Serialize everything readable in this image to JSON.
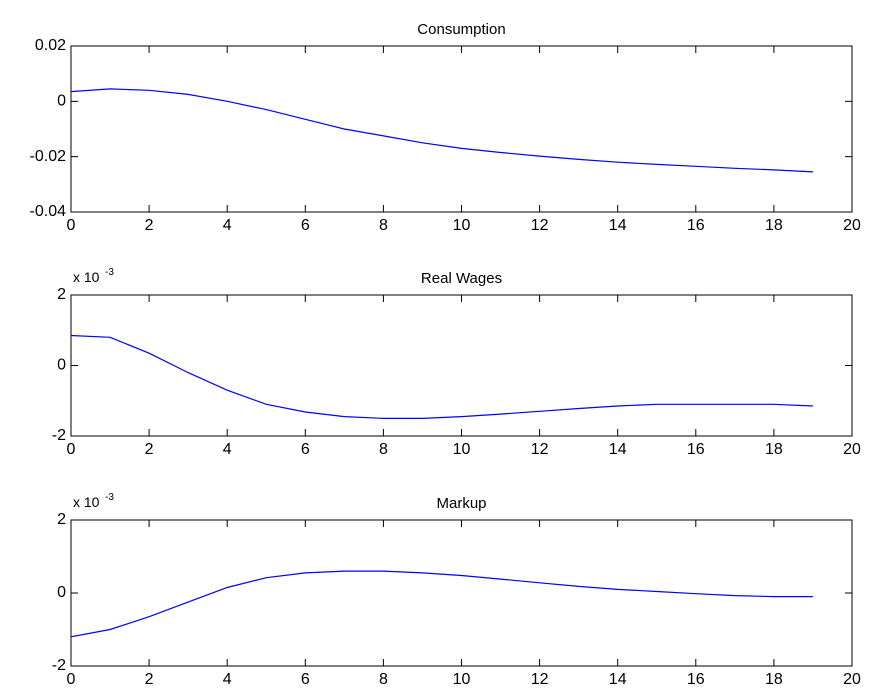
{
  "chart_data": [
    {
      "type": "line",
      "title": "Consumption",
      "xlabel": "",
      "ylabel": "",
      "xlim": [
        0,
        20
      ],
      "ylim": [
        -0.04,
        0.02
      ],
      "xticks": [
        "0",
        "2",
        "4",
        "6",
        "8",
        "10",
        "12",
        "14",
        "16",
        "18",
        "20"
      ],
      "yticks": [
        "-0.04",
        "-0.02",
        "0",
        "0.02"
      ],
      "y_multiplier": "",
      "grid": false,
      "x": [
        0,
        1,
        2,
        3,
        4,
        5,
        6,
        7,
        8,
        9,
        10,
        11,
        12,
        13,
        14,
        15,
        16,
        17,
        18,
        19
      ],
      "series": [
        {
          "color": "#0000ff",
          "values": [
            0.0035,
            0.0045,
            0.004,
            0.0025,
            0.0,
            -0.003,
            -0.0065,
            -0.01,
            -0.0125,
            -0.015,
            -0.017,
            -0.0185,
            -0.0198,
            -0.021,
            -0.022,
            -0.0228,
            -0.0235,
            -0.0242,
            -0.0248,
            -0.0255
          ]
        }
      ]
    },
    {
      "type": "line",
      "title": "Real Wages",
      "xlabel": "",
      "ylabel": "",
      "xlim": [
        0,
        20
      ],
      "ylim": [
        -2,
        2
      ],
      "xticks": [
        "0",
        "2",
        "4",
        "6",
        "8",
        "10",
        "12",
        "14",
        "16",
        "18",
        "20"
      ],
      "yticks": [
        "-2",
        "0",
        "2"
      ],
      "y_multiplier": {
        "base": "x 10",
        "exponent": "-3"
      },
      "grid": false,
      "x": [
        0,
        1,
        2,
        3,
        4,
        5,
        6,
        7,
        8,
        9,
        10,
        11,
        12,
        13,
        14,
        15,
        16,
        17,
        18,
        19
      ],
      "series": [
        {
          "color": "#0000ff",
          "values": [
            0.85,
            0.8,
            0.35,
            -0.2,
            -0.7,
            -1.1,
            -1.32,
            -1.45,
            -1.5,
            -1.5,
            -1.45,
            -1.38,
            -1.3,
            -1.22,
            -1.15,
            -1.1,
            -1.1,
            -1.1,
            -1.1,
            -1.15
          ]
        }
      ]
    },
    {
      "type": "line",
      "title": "Markup",
      "xlabel": "",
      "ylabel": "",
      "xlim": [
        0,
        20
      ],
      "ylim": [
        -2,
        2
      ],
      "xticks": [
        "0",
        "2",
        "4",
        "6",
        "8",
        "10",
        "12",
        "14",
        "16",
        "18",
        "20"
      ],
      "yticks": [
        "-2",
        "0",
        "2"
      ],
      "y_multiplier": {
        "base": "x 10",
        "exponent": "-3"
      },
      "grid": false,
      "x": [
        0,
        1,
        2,
        3,
        4,
        5,
        6,
        7,
        8,
        9,
        10,
        11,
        12,
        13,
        14,
        15,
        16,
        17,
        18,
        19
      ],
      "series": [
        {
          "color": "#0000ff",
          "values": [
            -1.2,
            -1.0,
            -0.65,
            -0.25,
            0.15,
            0.42,
            0.55,
            0.6,
            0.6,
            0.55,
            0.48,
            0.38,
            0.28,
            0.18,
            0.1,
            0.04,
            -0.02,
            -0.07,
            -0.1,
            -0.1
          ]
        }
      ]
    }
  ]
}
